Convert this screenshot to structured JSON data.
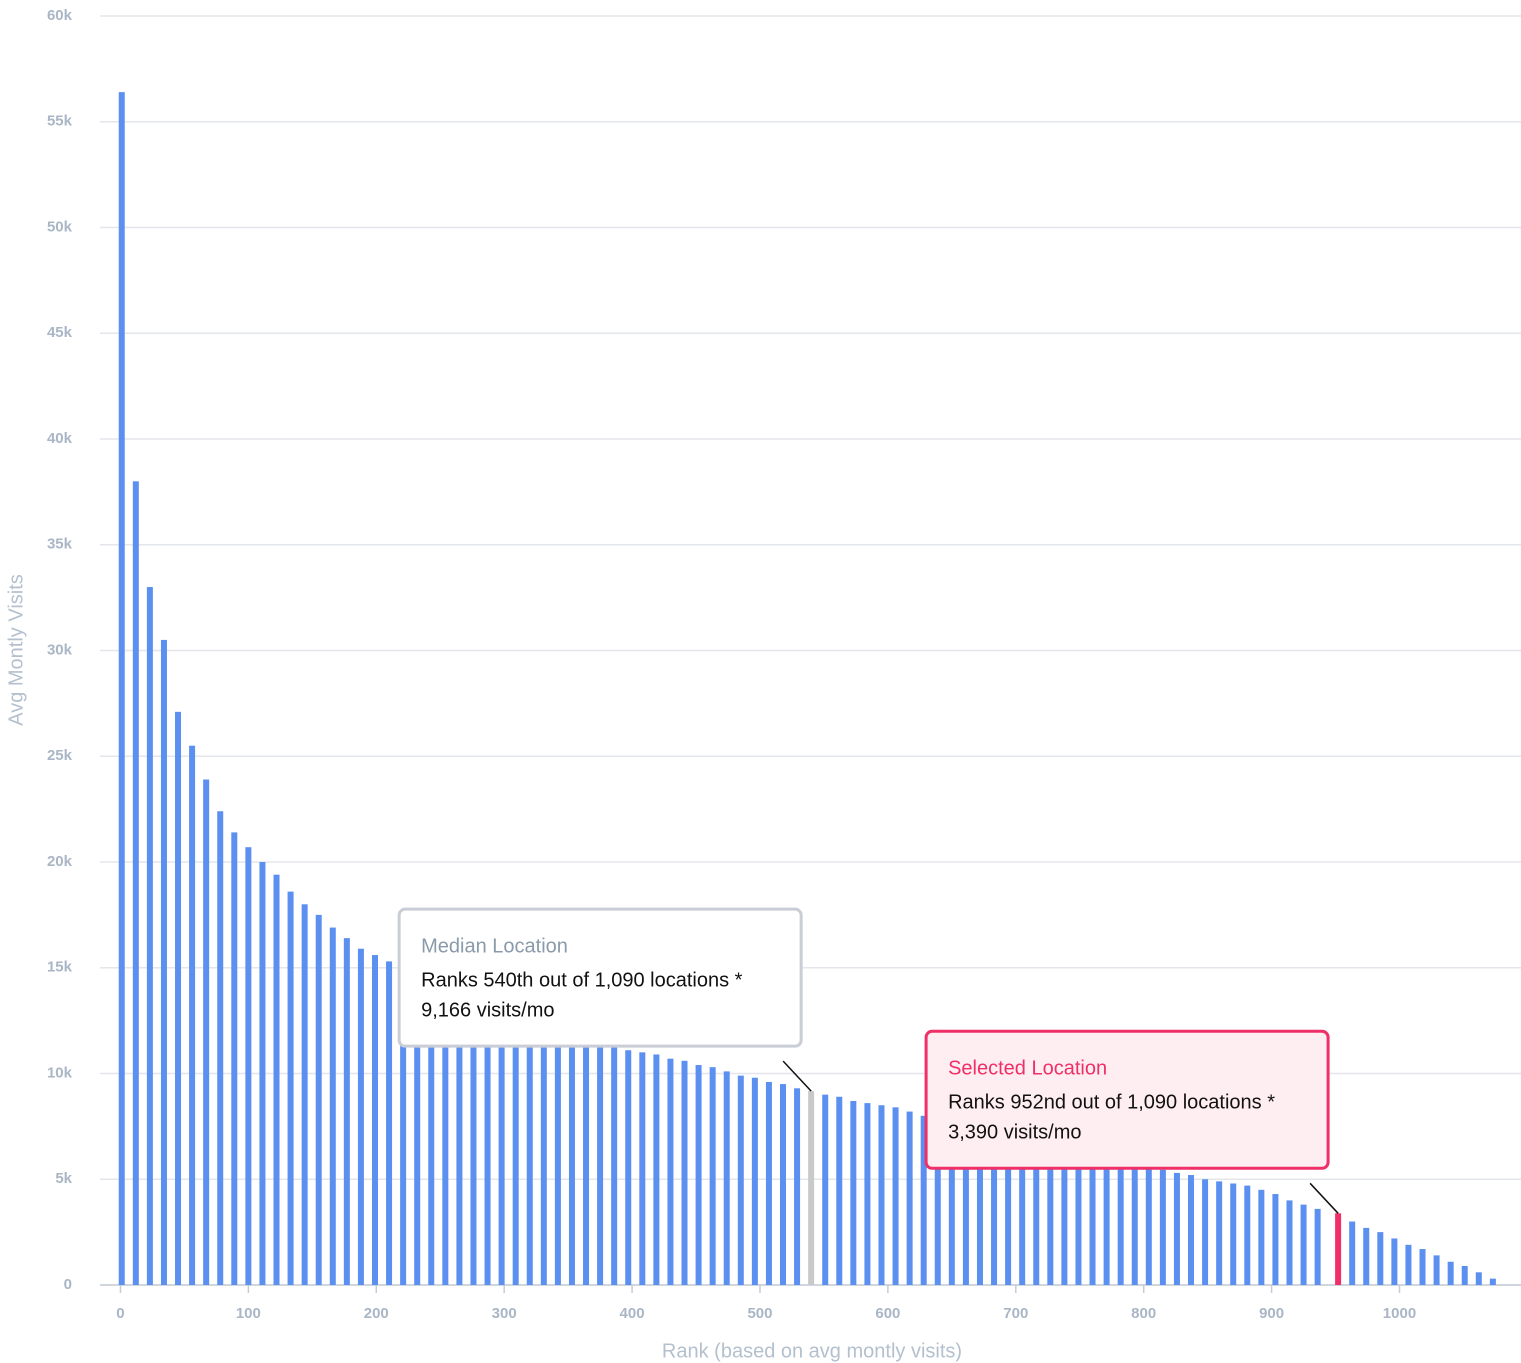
{
  "chart_data": {
    "type": "bar",
    "x_label": "Rank (based on avg montly visits)",
    "y_label": "Avg Montly Visits",
    "color": "#5b8ff0",
    "xlim": [
      -16,
      1095
    ],
    "xticks": [
      0,
      100,
      200,
      300,
      400,
      500,
      600,
      700,
      800,
      900,
      1000
    ],
    "ylim": [
      0,
      60000
    ],
    "yticks": [
      0,
      {
        "value": 5000,
        "label": "5k"
      },
      {
        "value": 10000,
        "label": "10k"
      },
      {
        "value": 15000,
        "label": "15k"
      },
      {
        "value": 20000,
        "label": "20k"
      },
      {
        "value": 25000,
        "label": "25k"
      },
      {
        "value": 30000,
        "label": "30k"
      },
      {
        "value": 35000,
        "label": "35k"
      },
      {
        "value": 40000,
        "label": "40k"
      },
      {
        "value": 45000,
        "label": "45k"
      },
      {
        "value": 50000,
        "label": "50k"
      },
      {
        "value": 55000,
        "label": "55k"
      },
      {
        "value": 60000,
        "label": "60k"
      }
    ],
    "grid": true,
    "x": [
      1,
      12,
      23,
      34,
      45,
      56,
      67,
      78,
      89,
      100,
      111,
      122,
      133,
      144,
      155,
      166,
      177,
      188,
      199,
      210,
      221,
      232,
      243,
      254,
      265,
      276,
      287,
      298,
      309,
      320,
      331,
      342,
      353,
      364,
      375,
      386,
      397,
      408,
      419,
      430,
      441,
      452,
      463,
      474,
      485,
      496,
      507,
      518,
      529,
      540,
      551,
      562,
      573,
      584,
      595,
      606,
      617,
      628,
      639,
      650,
      661,
      672,
      683,
      694,
      705,
      716,
      727,
      738,
      749,
      760,
      771,
      782,
      793,
      804,
      815,
      826,
      837,
      848,
      859,
      870,
      881,
      892,
      903,
      914,
      925,
      936,
      952,
      963,
      974,
      985,
      996,
      1007,
      1018,
      1029,
      1040,
      1051,
      1062,
      1073
    ],
    "values": [
      56400,
      38000,
      33000,
      30500,
      27100,
      25500,
      23900,
      22400,
      21400,
      20700,
      20000,
      19400,
      18600,
      18000,
      17500,
      16900,
      16400,
      15900,
      15600,
      15300,
      15000,
      14700,
      14500,
      14200,
      14000,
      13700,
      13500,
      13300,
      13000,
      12800,
      12600,
      12400,
      12200,
      11900,
      11600,
      11300,
      11100,
      11000,
      10900,
      10700,
      10600,
      10400,
      10300,
      10100,
      9900,
      9800,
      9600,
      9500,
      9300,
      9166,
      9000,
      8900,
      8700,
      8600,
      8500,
      8400,
      8200,
      8000,
      7850,
      7700,
      7550,
      7400,
      7250,
      7100,
      6950,
      6800,
      6650,
      6500,
      6350,
      6200,
      6050,
      5900,
      5750,
      5600,
      5450,
      5300,
      5200,
      5000,
      4900,
      4800,
      4700,
      4500,
      4300,
      4000,
      3800,
      3600,
      3390,
      3000,
      2700,
      2500,
      2200,
      1900,
      1700,
      1400,
      1100,
      900,
      600,
      300
    ],
    "annotations": [
      {
        "x": 540,
        "title": "Median Location",
        "lines": [
          "Ranks 540th out of 1,090 locations *",
          "9,166 visits/mo"
        ],
        "color": "#c9c9c9",
        "title_color": "#8a9aab",
        "border": "#c9ced6",
        "background": "#ffffff"
      },
      {
        "x": 952,
        "title": "Selected Location",
        "lines": [
          "Ranks 952nd out of 1,090 locations *",
          "3,390 visits/mo"
        ],
        "color": "#ef2f68",
        "title_color": "#ef2f68",
        "border": "#ef2f68",
        "background": "#ffeef1"
      }
    ]
  }
}
